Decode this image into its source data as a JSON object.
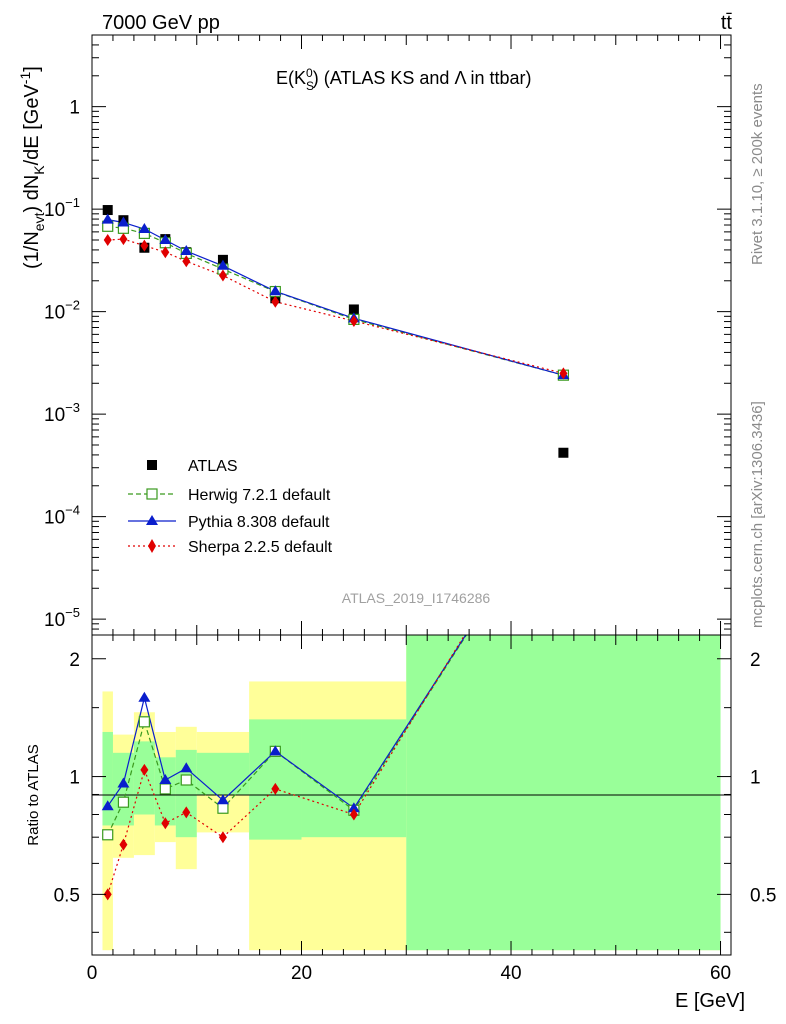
{
  "header": {
    "energy_label": "7000 GeV pp",
    "process_label": "tt̄"
  },
  "side_labels": {
    "rivet": "Rivet 3.1.10, ≥ 200k events",
    "mcplots": "mcplots.cern.ch [arXiv:1306.3436]"
  },
  "chart_data": {
    "type": "line",
    "title": "E(K_S^0) (ATLAS KS and Λ in ttbar)",
    "title_parts": {
      "e": "E(K",
      "sub": "S",
      "sup": "0",
      "rest": ") (ATLAS KS and Λ in ttbar)"
    },
    "analysis_id": "ATLAS_2019_I1746286",
    "xlabel": "E [GeV]",
    "ylabel": "(1/N_evt) dN_K/dE [GeV^-1]",
    "ylabel_parts": {
      "a": "(1/N",
      "sub1": "evt",
      "b": ") dN",
      "sub2": "K",
      "c": "/dE [GeV",
      "sup": "-1",
      "d": "]"
    },
    "ratio_ylabel": "Ratio to ATLAS",
    "xlim": [
      0,
      61
    ],
    "ylim": [
      7e-06,
      5
    ],
    "yscale": "log",
    "ratio_ylim": [
      0.35,
      2.3
    ],
    "ratio_yscale": "log",
    "x_ticks": [
      0,
      20,
      40,
      60
    ],
    "y_ticks": [
      {
        "v": 1,
        "base": "1",
        "exp": ""
      },
      {
        "v": 0.1,
        "base": "10",
        "exp": "−1"
      },
      {
        "v": 0.01,
        "base": "10",
        "exp": "−2"
      },
      {
        "v": 0.001,
        "base": "10",
        "exp": "−3"
      },
      {
        "v": 0.0001,
        "base": "10",
        "exp": "−4"
      },
      {
        "v": 1e-05,
        "base": "10",
        "exp": "−5"
      }
    ],
    "ratio_ticks": [
      {
        "v": 0.5,
        "label": "0.5"
      },
      {
        "v": 1,
        "label": "1"
      },
      {
        "v": 2,
        "label": "2"
      }
    ],
    "bins": [
      {
        "lo": 1,
        "hi": 2
      },
      {
        "lo": 2,
        "hi": 4
      },
      {
        "lo": 4,
        "hi": 6
      },
      {
        "lo": 6,
        "hi": 8
      },
      {
        "lo": 8,
        "hi": 10
      },
      {
        "lo": 10,
        "hi": 15
      },
      {
        "lo": 15,
        "hi": 20
      },
      {
        "lo": 20,
        "hi": 30
      },
      {
        "lo": 30,
        "hi": 60
      }
    ],
    "x": [
      1.5,
      3,
      5,
      7,
      9,
      12.5,
      17.5,
      25,
      45
    ],
    "ratio_bands": {
      "yellow": [
        [
          0.36,
          1.65
        ],
        [
          0.62,
          1.28
        ],
        [
          0.63,
          1.46
        ],
        [
          0.68,
          1.3
        ],
        [
          0.58,
          1.34
        ],
        [
          0.72,
          1.3
        ],
        [
          0.36,
          1.75
        ],
        [
          0.36,
          1.75
        ],
        [
          0.36,
          2.3
        ]
      ],
      "green": [
        [
          0.75,
          1.3
        ],
        [
          0.75,
          1.15
        ],
        [
          0.8,
          1.23
        ],
        [
          0.75,
          1.12
        ],
        [
          0.7,
          1.17
        ],
        [
          0.9,
          1.15
        ],
        [
          0.69,
          1.4
        ],
        [
          0.7,
          1.4
        ],
        [
          0.36,
          2.3
        ]
      ]
    },
    "series": [
      {
        "name": "ATLAS",
        "color": "#000000",
        "marker": "square-filled",
        "values": [
          0.098,
          0.078,
          0.042,
          0.051,
          0.038,
          0.032,
          0.0135,
          0.0105,
          0.00042
        ]
      },
      {
        "name": "Herwig 7.2.1 default",
        "color": "#3a9a1e",
        "marker": "square-open",
        "dash": "5,3",
        "values": [
          0.068,
          0.065,
          0.058,
          0.047,
          0.037,
          0.026,
          0.0157,
          0.0084,
          0.0024
        ],
        "ratio": [
          0.71,
          0.86,
          1.38,
          0.93,
          0.98,
          0.83,
          1.16,
          0.82,
          5.6
        ]
      },
      {
        "name": "Pythia 8.308 default",
        "color": "#0a1ecc",
        "marker": "triangle",
        "values": [
          0.079,
          0.074,
          0.064,
          0.05,
          0.039,
          0.028,
          0.0158,
          0.0086,
          0.0024
        ],
        "ratio": [
          0.84,
          0.96,
          1.59,
          0.98,
          1.05,
          0.87,
          1.16,
          0.83,
          5.6
        ]
      },
      {
        "name": "Sherpa 2.2.5 default",
        "color": "#e00000",
        "marker": "diamond",
        "dash": "2,3",
        "values": [
          0.05,
          0.051,
          0.044,
          0.038,
          0.031,
          0.0225,
          0.0125,
          0.0081,
          0.0025
        ],
        "ratio": [
          0.5,
          0.67,
          1.04,
          0.76,
          0.81,
          0.7,
          0.93,
          0.8,
          5.9
        ]
      }
    ],
    "legend_placement": "lower-left inside main panel"
  }
}
